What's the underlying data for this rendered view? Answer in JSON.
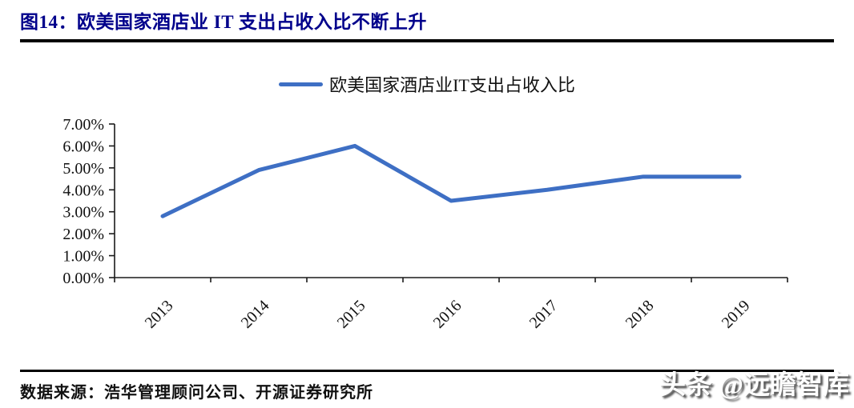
{
  "page": {
    "title": "图14：欧美国家酒店业 IT 支出占收入比不断上升",
    "source_label": "数据来源：浩华管理顾问公司、开源证券研究所",
    "watermark": "头条 @远瞻智库"
  },
  "legend": {
    "label": "欧美国家酒店业IT支出占收入比"
  },
  "colors": {
    "title": "#00008B",
    "line": "#3E6FC4",
    "axis": "#1a1a1a",
    "rule": "#000000"
  },
  "chart_data": {
    "type": "line",
    "title": "",
    "categories": [
      "2013",
      "2014",
      "2015",
      "2016",
      "2017",
      "2018",
      "2019"
    ],
    "series": [
      {
        "name": "欧美国家酒店业IT支出占收入比",
        "values": [
          2.8,
          4.9,
          6.0,
          3.5,
          4.0,
          4.6,
          4.6
        ]
      }
    ],
    "unit": "percent",
    "ylim": [
      0,
      7
    ],
    "ytick_labels": [
      "0.00%",
      "1.00%",
      "2.00%",
      "3.00%",
      "4.00%",
      "5.00%",
      "6.00%",
      "7.00%"
    ],
    "grid": false,
    "legend_position": "top-center",
    "x_label_rotation": -45
  }
}
